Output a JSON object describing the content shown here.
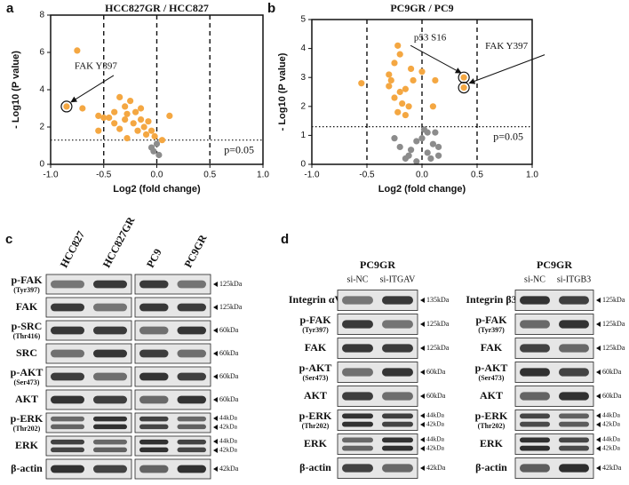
{
  "chart_data": [
    {
      "type": "scatter",
      "panel": "a",
      "title": "HCC827GR / HCC827",
      "x_label": "Log2 (fold change)",
      "y_label": "- Log10 (P value)",
      "xlim": [
        -1,
        1
      ],
      "ylim": [
        0,
        8
      ],
      "xticks": [
        {
          "value": -1,
          "label": "-1.0"
        },
        {
          "value": -0.5,
          "label": "-0.5"
        },
        {
          "value": 0,
          "label": "0.0"
        },
        {
          "value": 0.5,
          "label": "0.5"
        },
        {
          "value": 1,
          "label": "1.0"
        }
      ],
      "yticks": [
        0,
        2,
        4,
        6,
        8
      ],
      "vlines": [
        -0.5,
        0,
        0.5
      ],
      "hline": 1.3,
      "hline_label": "p=0.05",
      "series": [
        {
          "color": "#f4a742",
          "x": [
            -0.85,
            -0.75,
            -0.7,
            -0.55,
            -0.5,
            -0.45,
            -0.55,
            -0.4,
            -0.35,
            -0.3,
            -0.28,
            -0.25,
            -0.2,
            -0.22,
            -0.18,
            -0.15,
            -0.12,
            -0.1,
            -0.08,
            -0.3,
            -0.05,
            -0.02,
            0.05,
            0.12,
            -0.35,
            -0.4,
            -0.15,
            -0.28
          ],
          "values": [
            3.1,
            6.1,
            3.0,
            2.6,
            2.5,
            2.5,
            1.8,
            2.2,
            1.9,
            3.1,
            2.7,
            3.4,
            2.8,
            2.2,
            1.8,
            2.4,
            2.0,
            1.6,
            2.3,
            2.4,
            1.8,
            1.5,
            1.3,
            2.6,
            3.6,
            2.8,
            3.0,
            1.4
          ]
        },
        {
          "color": "#8c8c8c",
          "x": [
            0.0,
            -0.03,
            0.02,
            -0.05
          ],
          "values": [
            1.1,
            0.7,
            0.5,
            0.9
          ]
        }
      ],
      "annotations": [
        {
          "text": "FAK Y397",
          "x": -0.85,
          "y": 3.1
        }
      ]
    },
    {
      "type": "scatter",
      "panel": "b",
      "title": "PC9GR / PC9",
      "x_label": "Log2 (fold change)",
      "y_label": "- Log10 (P value)",
      "xlim": [
        -1,
        1
      ],
      "ylim": [
        0,
        5
      ],
      "xticks": [
        {
          "value": -1,
          "label": "-1.0"
        },
        {
          "value": -0.5,
          "label": "-0.5"
        },
        {
          "value": 0,
          "label": "0.0"
        },
        {
          "value": 0.5,
          "label": "0.5"
        },
        {
          "value": 1,
          "label": "1.0"
        }
      ],
      "yticks": [
        0,
        1,
        2,
        3,
        4,
        5
      ],
      "vlines": [
        -0.5,
        0,
        0.5
      ],
      "hline": 1.3,
      "hline_label": "p=0.05",
      "series": [
        {
          "color": "#f4a742",
          "x": [
            -0.55,
            -0.3,
            -0.25,
            -0.22,
            -0.2,
            -0.28,
            -0.2,
            -0.15,
            -0.25,
            -0.18,
            -0.12,
            -0.22,
            -0.15,
            -0.08,
            -0.1,
            0.0,
            0.12,
            0.1,
            -0.3,
            0.38,
            0.38
          ],
          "values": [
            2.8,
            3.1,
            3.5,
            4.1,
            3.8,
            2.9,
            2.5,
            2.6,
            2.3,
            2.1,
            2.0,
            1.8,
            1.7,
            2.9,
            3.3,
            3.2,
            2.9,
            2.0,
            2.7,
            3.0,
            2.65
          ]
        },
        {
          "color": "#8c8c8c",
          "x": [
            -0.25,
            -0.2,
            -0.1,
            -0.05,
            0.0,
            0.05,
            0.1,
            0.15,
            -0.15,
            0.05,
            0.12,
            -0.05,
            0.15,
            0.08,
            0.02,
            -0.12
          ],
          "values": [
            0.9,
            0.6,
            0.5,
            0.8,
            0.9,
            1.1,
            0.7,
            0.3,
            0.2,
            0.4,
            1.1,
            0.1,
            0.6,
            0.2,
            1.2,
            0.3
          ]
        }
      ],
      "annotations": [
        {
          "text": "p53 S16",
          "x": 0.38,
          "y": 3.0
        },
        {
          "text": "FAK Y397",
          "x": 0.38,
          "y": 2.65
        }
      ]
    }
  ],
  "blots": [
    {
      "panel": "c",
      "groups": [
        {
          "lanes": [
            "HCC827",
            "HCC827GR"
          ]
        },
        {
          "lanes": [
            "PC9",
            "PC9GR"
          ]
        }
      ],
      "rows": [
        {
          "label": "p-FAK",
          "sub": "(Tyr397)",
          "markers": [
            "125kDa"
          ]
        },
        {
          "label": "FAK",
          "markers": [
            "125kDa"
          ]
        },
        {
          "label": "p-SRC",
          "sub": "(Thr416)",
          "markers": [
            "60kDa"
          ]
        },
        {
          "label": "SRC",
          "markers": [
            "60kDa"
          ]
        },
        {
          "label": "p-AKT",
          "sub": "(Ser473)",
          "markers": [
            "60kDa"
          ]
        },
        {
          "label": "AKT",
          "markers": [
            "60kDa"
          ]
        },
        {
          "label": "p-ERK",
          "sub": "(Thr202)",
          "markers": [
            "44kDa",
            "42kDa"
          ]
        },
        {
          "label": "ERK",
          "markers": [
            "44kDa",
            "42kDa"
          ]
        },
        {
          "label": "β-actin",
          "markers": [
            "42kDa"
          ]
        }
      ]
    },
    {
      "panel": "d",
      "groups": [
        {
          "title": "PC9GR",
          "lanes": [
            "si-NC",
            "si-ITGAV"
          ],
          "rows": [
            {
              "label": "Integrin αV",
              "markers": [
                "135kDa"
              ]
            },
            {
              "label": "p-FAK",
              "sub": "(Tyr397)",
              "markers": [
                "125kDa"
              ]
            },
            {
              "label": "FAK",
              "markers": [
                "125kDa"
              ]
            },
            {
              "label": "p-AKT",
              "sub": "(Ser473)",
              "markers": [
                "60kDa"
              ]
            },
            {
              "label": "AKT",
              "markers": [
                "60kDa"
              ]
            },
            {
              "label": "p-ERK",
              "sub": "(Thr202)",
              "markers": [
                "44kDa",
                "42kDa"
              ]
            },
            {
              "label": "ERK",
              "markers": [
                "44kDa",
                "42kDa"
              ]
            },
            {
              "label": "β-actin",
              "markers": [
                "42kDa"
              ]
            }
          ]
        },
        {
          "title": "PC9GR",
          "lanes": [
            "si-NC",
            "si-ITGB3"
          ],
          "rows": [
            {
              "label": "Integrin β3",
              "markers": [
                "125kDa"
              ]
            },
            {
              "label": "p-FAK",
              "sub": "(Tyr397)",
              "markers": [
                "125kDa"
              ]
            },
            {
              "label": "FAK",
              "markers": [
                "125kDa"
              ]
            },
            {
              "label": "p-AKT",
              "sub": "(Ser473)",
              "markers": [
                "60kDa"
              ]
            },
            {
              "label": "AKT",
              "markers": [
                "60kDa"
              ]
            },
            {
              "label": "p-ERK",
              "sub": "(Thr202)",
              "markers": [
                "44kDa",
                "42kDa"
              ]
            },
            {
              "label": "ERK",
              "markers": [
                "44kDa",
                "42kDa"
              ]
            },
            {
              "label": "β-actin",
              "markers": [
                "42kDa"
              ]
            }
          ]
        }
      ]
    }
  ]
}
